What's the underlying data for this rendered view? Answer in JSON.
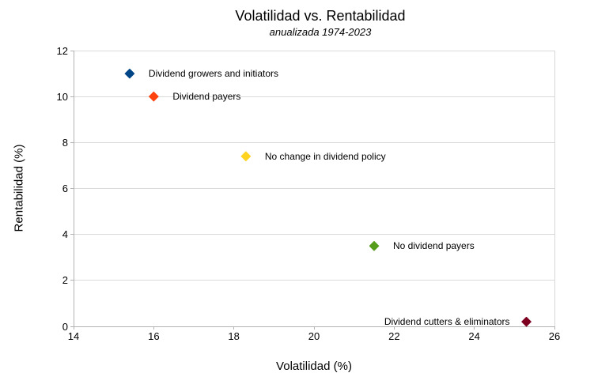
{
  "chart_data": {
    "type": "scatter",
    "title": "Volatilidad vs. Rentabilidad",
    "subtitle": "anualizada 1974-2023",
    "xlabel": "Volatilidad (%)",
    "ylabel": "Rentabilidad (%)",
    "xlim": [
      14,
      26
    ],
    "ylim": [
      0,
      12
    ],
    "x_ticks": [
      14,
      16,
      18,
      20,
      22,
      24,
      26
    ],
    "y_ticks": [
      0,
      2,
      4,
      6,
      8,
      10,
      12
    ],
    "grid": "horizontal-only, plus light top and right plot borders",
    "legend_position": "none (each point labeled inline)",
    "marker": "diamond",
    "colors": {
      "background": "#ffffff",
      "axis_line": "#b3b3b3",
      "gridline": "#d9d9d9",
      "text": "#000000"
    },
    "points": [
      {
        "label": "Dividend growers and initiators",
        "x": 15.4,
        "y": 11.0,
        "color": "#004586",
        "label_side": "right"
      },
      {
        "label": "Dividend payers",
        "x": 16.0,
        "y": 10.0,
        "color": "#ff420e",
        "label_side": "right"
      },
      {
        "label": "No change in dividend policy",
        "x": 18.3,
        "y": 7.4,
        "color": "#ffd320",
        "label_side": "right"
      },
      {
        "label": "No dividend payers",
        "x": 21.5,
        "y": 3.5,
        "color": "#579d1c",
        "label_side": "right"
      },
      {
        "label": "Dividend cutters & eliminators",
        "x": 25.3,
        "y": 0.2,
        "color": "#7e0021",
        "label_side": "left"
      }
    ]
  }
}
